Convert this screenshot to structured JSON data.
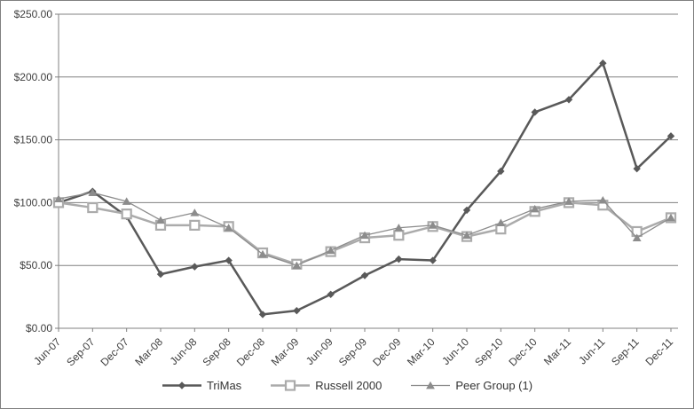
{
  "chart_data": {
    "type": "line",
    "title": "",
    "xlabel": "",
    "ylabel": "",
    "categories": [
      "Jun-07",
      "Sep-07",
      "Dec-07",
      "Mar-08",
      "Jun-08",
      "Sep-08",
      "Dec-08",
      "Mar-09",
      "Jun-09",
      "Sep-09",
      "Dec-09",
      "Mar-10",
      "Jun-10",
      "Sep-10",
      "Dec-10",
      "Mar-11",
      "Jun-11",
      "Sep-11",
      "Dec-11"
    ],
    "series": [
      {
        "name": "TriMas",
        "color": "#595959",
        "marker": "diamond",
        "line_width": 2.5,
        "values": [
          100,
          109,
          89,
          43,
          49,
          54,
          11,
          14,
          27,
          42,
          55,
          54,
          94,
          125,
          172,
          182,
          211,
          127,
          153
        ]
      },
      {
        "name": "Russell 2000",
        "color": "#ababab",
        "marker": "square-open",
        "line_width": 2.5,
        "values": [
          100,
          96,
          91,
          82,
          82,
          81,
          60,
          51,
          61,
          72,
          74,
          81,
          73,
          79,
          93,
          100,
          98,
          77,
          88
        ]
      },
      {
        "name": "Peer Group (1)",
        "color": "#8c8c8c",
        "marker": "triangle",
        "line_width": 1.3,
        "values": [
          103,
          108,
          101,
          86,
          92,
          80,
          59,
          50,
          62,
          74,
          80,
          82,
          74,
          84,
          95,
          101,
          102,
          72,
          88
        ]
      }
    ],
    "ylim": [
      0,
      250
    ],
    "y_ticks": [
      0,
      50,
      100,
      150,
      200,
      250
    ],
    "y_tick_labels": [
      "$0.00",
      "$50.00",
      "$100.00",
      "$150.00",
      "$200.00",
      "$250.00"
    ],
    "grid": true,
    "legend_position": "bottom",
    "colors": {
      "grid": "#808080",
      "axis": "#808080",
      "tick_text": "#3f3f3f",
      "background": "#ffffff",
      "border": "#808080"
    }
  }
}
